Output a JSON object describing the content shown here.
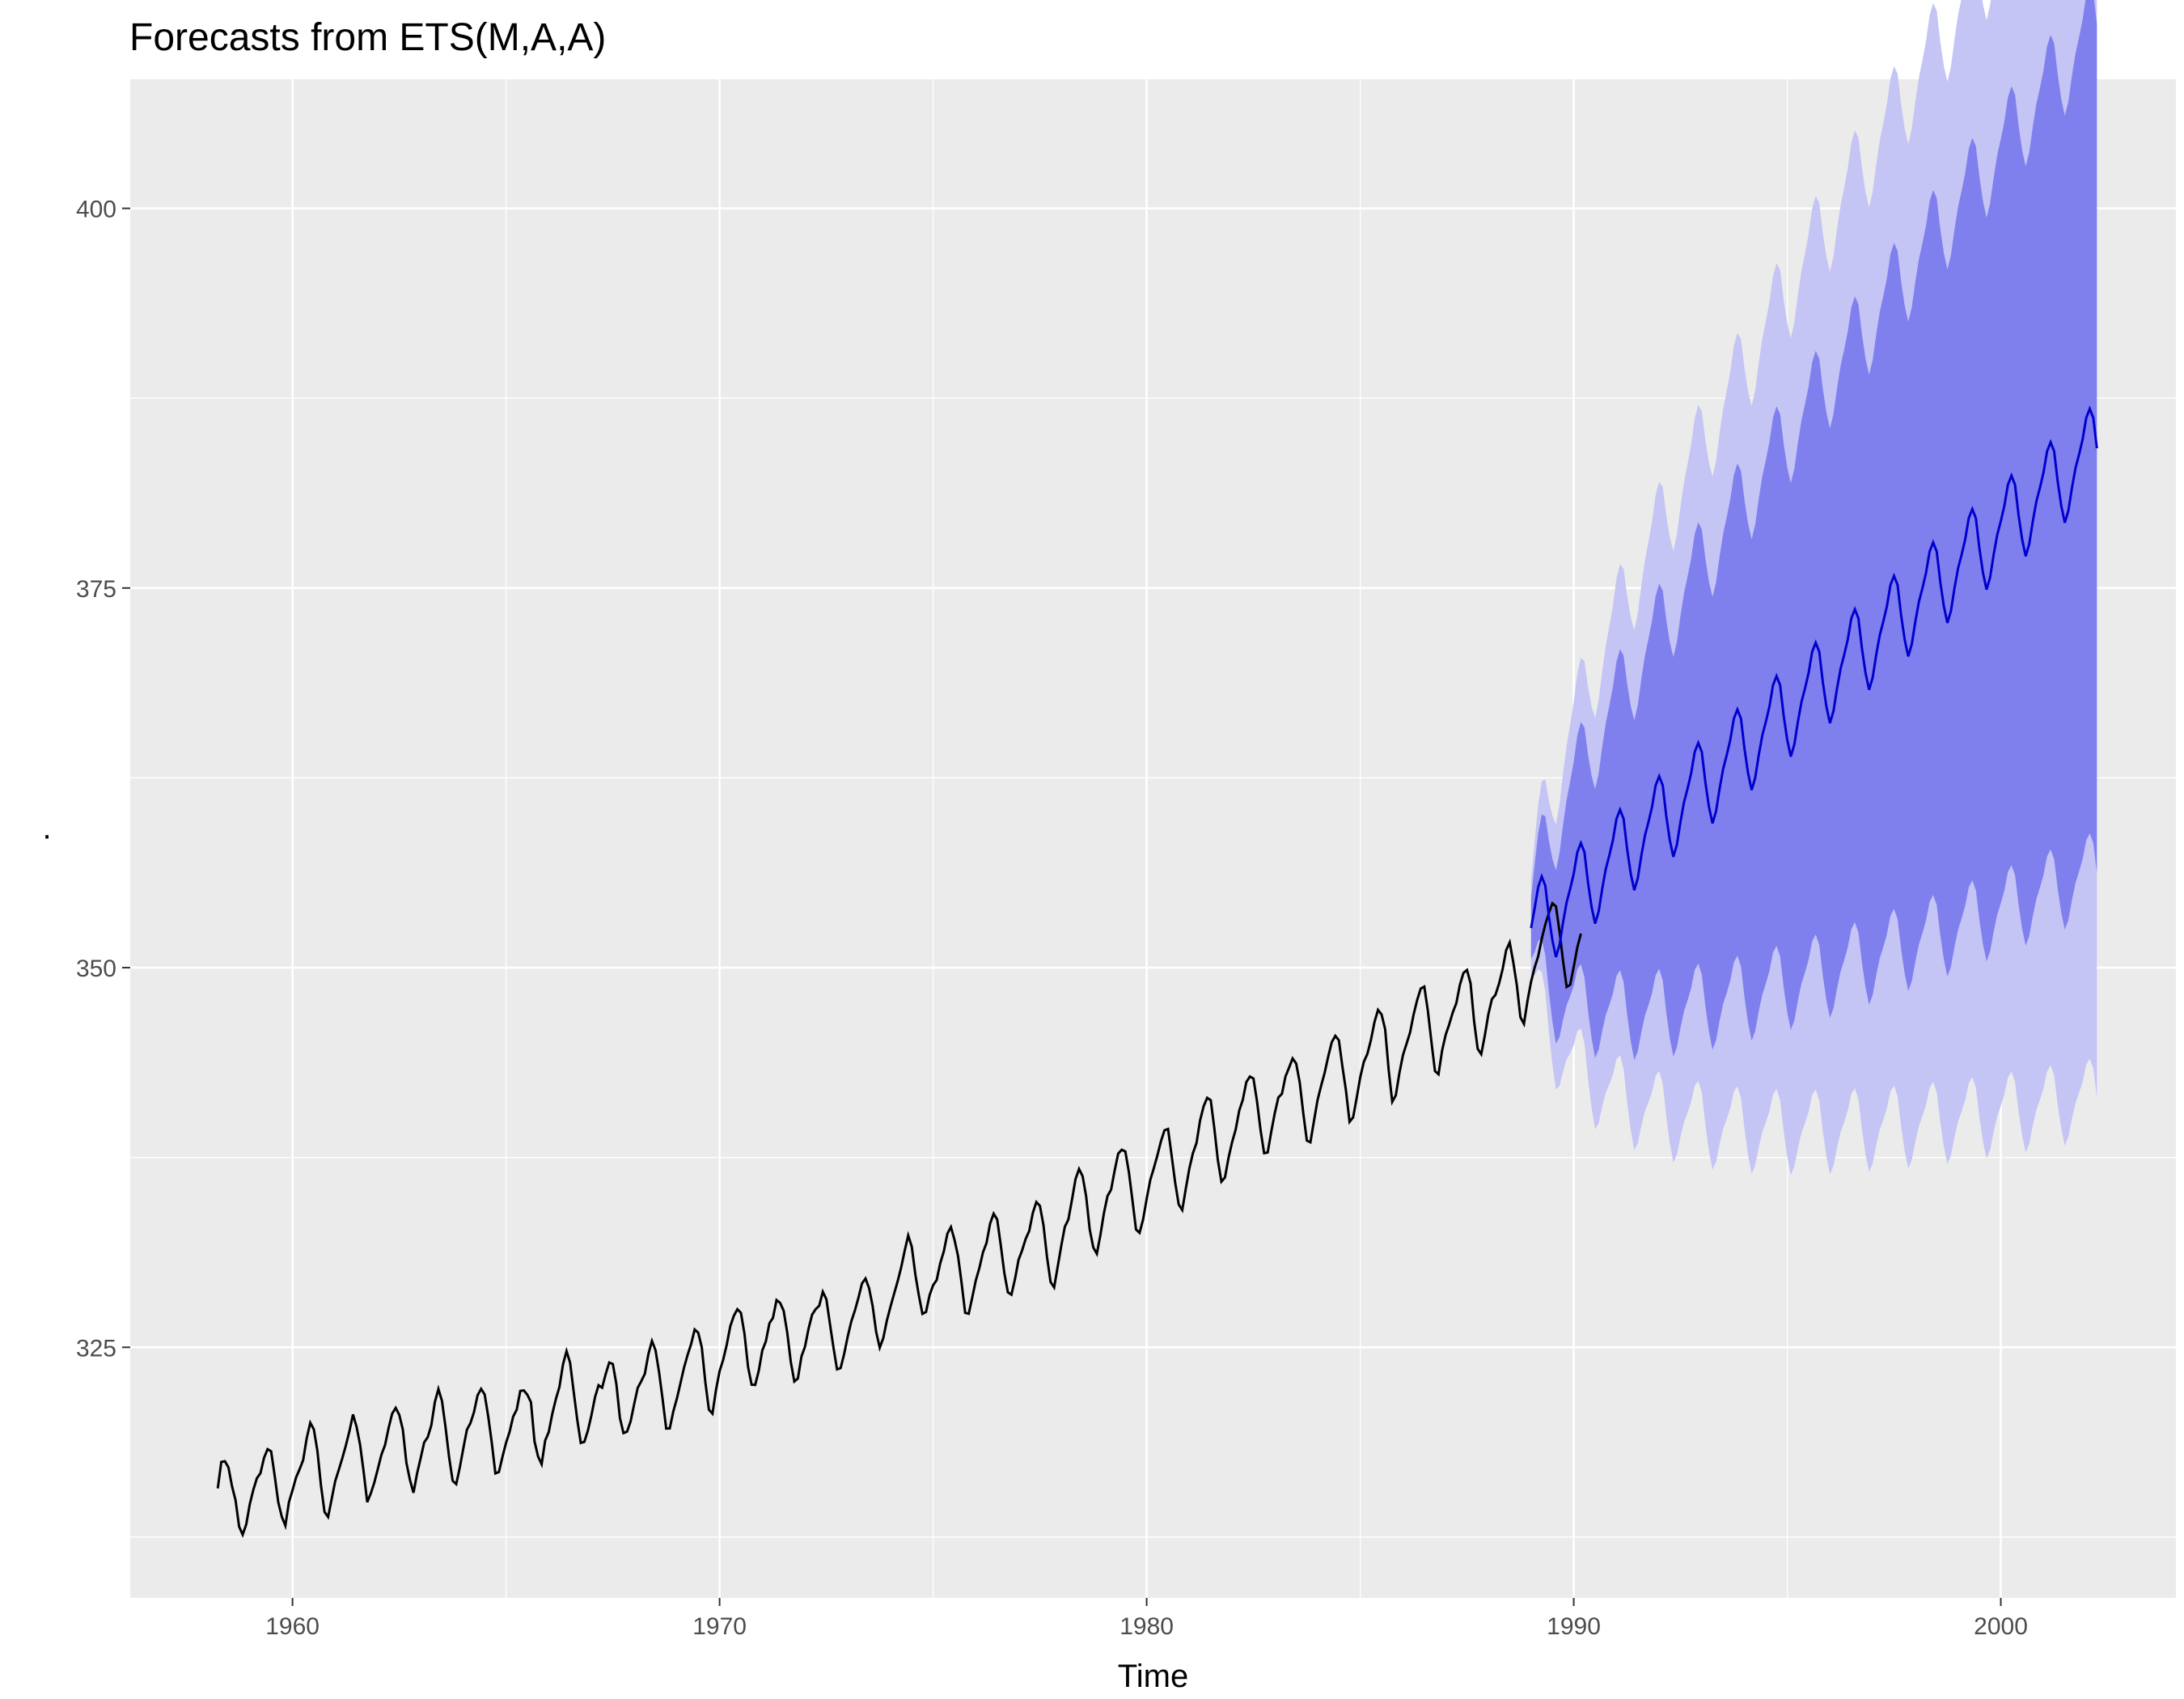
{
  "chart_data": {
    "type": "line",
    "title": "Forecasts from ETS(M,A,A)",
    "xlabel": "Time",
    "ylabel": ".",
    "xlim": [
      1956.2,
      2004.1
    ],
    "ylim": [
      308.5,
      408.5
    ],
    "x_ticks": [
      1960,
      1970,
      1980,
      1990,
      2000
    ],
    "x_tick_labels": [
      "1960",
      "1970",
      "1980",
      "1990",
      "2000"
    ],
    "y_ticks": [
      325,
      350,
      375,
      400
    ],
    "y_tick_labels": [
      "325",
      "350",
      "375",
      "400"
    ],
    "grid": true,
    "background": "#ebebeb",
    "colors": {
      "history": "#000000",
      "forecast": "#0000cc",
      "pi80": "#7f7fee",
      "pi95": "#c4c4f5",
      "grid": "#ffffff"
    },
    "history": {
      "start": 1958.25,
      "frequency": 12,
      "values": [
        315.71,
        317.45,
        317.5,
        317.1,
        315.86,
        314.93,
        313.2,
        312.66,
        313.33,
        314.67,
        315.62,
        316.38,
        316.71,
        317.72,
        318.29,
        318.15,
        316.54,
        314.8,
        313.84,
        313.26,
        314.8,
        315.58,
        316.43,
        316.97,
        317.58,
        319.02,
        320.03,
        319.59,
        318.18,
        315.91,
        314.16,
        313.83,
        315.0,
        316.19,
        316.93,
        317.7,
        318.54,
        319.48,
        320.58,
        319.77,
        318.57,
        316.79,
        314.8,
        315.38,
        316.1,
        317.01,
        317.94,
        318.56,
        319.68,
        320.63,
        321.01,
        320.55,
        319.58,
        317.4,
        316.26,
        315.42,
        316.69,
        317.69,
        318.74,
        319.08,
        319.86,
        321.39,
        322.25,
        321.47,
        319.74,
        317.77,
        316.21,
        315.99,
        317.07,
        318.35,
        319.57,
        320.01,
        320.74,
        321.84,
        322.26,
        321.89,
        320.44,
        318.7,
        316.7,
        316.79,
        317.79,
        318.71,
        319.44,
        320.44,
        320.89,
        322.13,
        322.16,
        321.87,
        321.39,
        318.81,
        317.81,
        317.3,
        318.87,
        319.42,
        320.62,
        321.59,
        322.39,
        323.87,
        324.75,
        323.98,
        322.09,
        320.25,
        318.7,
        318.77,
        319.52,
        320.53,
        321.71,
        322.5,
        322.34,
        323.24,
        324.0,
        323.9,
        322.58,
        320.34,
        319.35,
        319.45,
        320.12,
        321.26,
        322.33,
        322.77,
        323.26,
        324.56,
        325.42,
        324.81,
        323.36,
        321.57,
        319.65,
        319.66,
        320.78,
        321.62,
        322.63,
        323.65,
        324.49,
        325.21,
        326.17,
        325.96,
        325.0,
        322.7,
        320.89,
        320.63,
        322.21,
        323.43,
        324.17,
        325.16,
        326.38,
        327.07,
        327.51,
        327.27,
        325.88,
        323.7,
        322.54,
        322.52,
        323.45,
        324.79,
        325.39,
        326.58,
        326.94,
        328.11,
        327.93,
        327.41,
        325.98,
        324.05,
        322.75,
        322.95,
        324.4,
        325.04,
        326.23,
        327.15,
        327.51,
        327.74,
        328.66,
        328.17,
        326.55,
        324.98,
        323.55,
        323.63,
        324.56,
        325.71,
        326.7,
        327.41,
        328.25,
        329.2,
        329.53,
        328.9,
        327.72,
        326.0,
        324.98,
        325.61,
        326.76,
        327.66,
        328.5,
        329.32,
        330.24,
        331.35,
        332.37,
        331.62,
        329.8,
        328.4,
        327.2,
        327.33,
        328.43,
        329.09,
        329.43,
        330.54,
        331.32,
        332.48,
        332.92,
        332.08,
        331.01,
        329.23,
        327.27,
        327.21,
        328.29,
        329.41,
        330.23,
        331.25,
        331.87,
        333.14,
        333.8,
        333.42,
        331.73,
        329.9,
        328.62,
        328.47,
        329.49,
        330.76,
        331.38,
        332.14,
        332.66,
        333.84,
        334.57,
        334.32,
        333.05,
        330.94,
        329.3,
        328.94,
        330.31,
        331.68,
        332.93,
        333.42,
        334.7,
        336.07,
        336.74,
        336.27,
        334.93,
        332.75,
        331.58,
        331.16,
        332.4,
        333.85,
        334.97,
        335.38,
        336.64,
        337.76,
        338.01,
        337.89,
        336.54,
        334.68,
        332.76,
        332.54,
        333.43,
        334.78,
        336.01,
        336.79,
        337.63,
        338.56,
        339.29,
        339.38,
        337.65,
        335.86,
        334.41,
        334.04,
        335.46,
        336.79,
        337.79,
        338.46,
        339.94,
        340.87,
        341.43,
        341.27,
        339.44,
        337.32,
        335.91,
        336.19,
        337.48,
        338.51,
        339.33,
        340.59,
        341.29,
        342.47,
        342.83,
        342.7,
        341.2,
        339.3,
        337.78,
        337.83,
        339.19,
        340.43,
        341.45,
        341.69,
        342.83,
        343.41,
        344.02,
        343.69,
        342.44,
        340.42,
        338.61,
        338.5,
        339.9,
        341.27,
        342.21,
        343.07,
        344.14,
        345.09,
        345.51,
        345.22,
        343.48,
        341.9,
        339.85,
        340.14,
        341.42,
        342.78,
        343.79,
        344.32,
        345.23,
        346.41,
        347.22,
        346.92,
        345.95,
        343.25,
        341.17,
        341.6,
        343.05,
        344.24,
        344.98,
        345.73,
        346.92,
        347.87,
        348.62,
        348.75,
        347.17,
        345.13,
        343.19,
        342.98,
        344.54,
        345.57,
        346.26,
        347.05,
        347.66,
        348.87,
        349.65,
        349.85,
        348.97,
        346.46,
        344.66,
        344.3,
        345.52,
        346.93,
        347.93,
        348.21,
        348.95,
        349.89,
        351.15,
        351.66,
        350.36,
        348.85,
        346.74,
        346.3,
        347.82,
        349.07,
        350.01,
        350.75,
        351.9,
        352.85,
        353.6,
        354.24,
        354.03,
        352.38,
        350.43,
        348.73,
        348.88,
        350.07,
        351.34,
        352.24
      ]
    },
    "forecast": {
      "start": 1989.0,
      "frequency": 12,
      "mean": [
        352.6,
        353.9,
        355.3,
        356.0,
        355.4,
        353.4,
        351.8,
        350.7,
        351.5,
        353.0,
        354.3,
        355.2,
        356.2,
        357.6,
        358.2,
        357.6,
        355.6,
        354.0,
        352.9,
        353.7,
        355.2,
        356.5,
        357.4,
        358.4,
        359.8,
        360.4,
        359.8,
        357.8,
        356.2,
        355.1,
        355.9,
        357.4,
        358.7,
        359.6,
        360.6,
        362.0,
        362.6,
        362.0,
        360.0,
        358.4,
        357.3,
        358.1,
        359.6,
        360.9,
        361.8,
        362.8,
        364.2,
        364.8,
        364.2,
        362.2,
        360.6,
        359.5,
        360.3,
        361.8,
        363.1,
        364.0,
        365.0,
        366.4,
        367.0,
        366.4,
        364.4,
        362.8,
        361.7,
        362.5,
        364.0,
        365.3,
        366.2,
        367.2,
        368.6,
        369.2,
        368.6,
        366.6,
        365.0,
        363.9,
        364.7,
        366.2,
        367.5,
        368.4,
        369.4,
        370.8,
        371.4,
        370.8,
        368.8,
        367.2,
        366.1,
        366.9,
        368.4,
        369.7,
        370.6,
        371.6,
        373.0,
        373.6,
        373.0,
        371.0,
        369.4,
        368.3,
        369.1,
        370.6,
        371.9,
        372.8,
        373.8,
        375.2,
        375.8,
        375.2,
        373.2,
        371.6,
        370.5,
        371.3,
        372.8,
        374.1,
        375.0,
        376.0,
        377.4,
        378.0,
        377.4,
        375.4,
        373.8,
        372.7,
        373.5,
        375.0,
        376.3,
        377.2,
        378.2,
        379.6,
        380.2,
        379.6,
        377.6,
        376.0,
        374.9,
        375.7,
        377.2,
        378.5,
        379.4,
        380.4,
        381.8,
        382.4,
        381.8,
        379.8,
        378.2,
        377.1,
        377.9,
        379.4,
        380.7,
        381.6,
        382.6,
        384.0,
        384.6,
        384.0,
        382.0,
        380.4,
        379.3,
        380.1,
        381.6,
        382.9,
        383.8,
        384.8,
        386.2,
        386.8,
        386.2,
        384.2
      ],
      "pi80_width_factor": 0.0575,
      "pi95_width_factor": 0.088
    },
    "legend": "none"
  }
}
